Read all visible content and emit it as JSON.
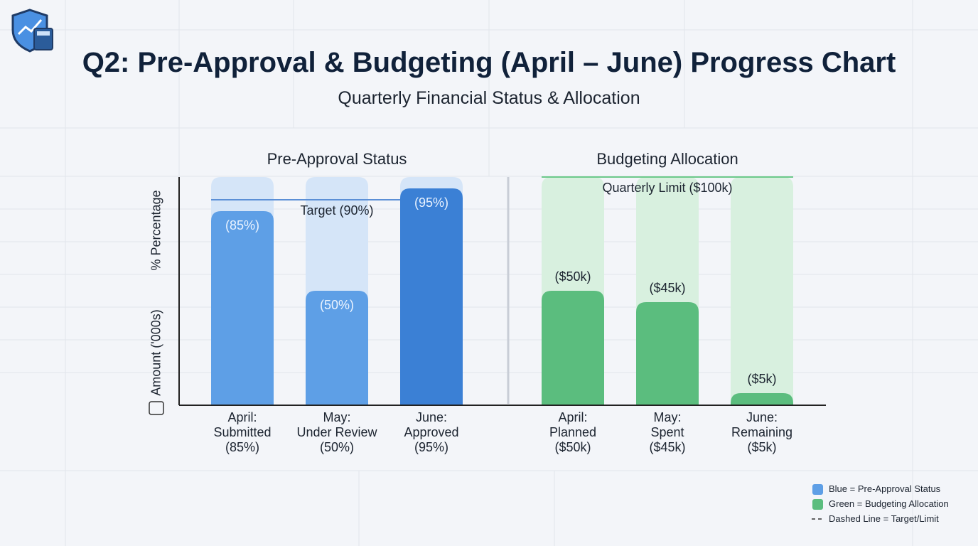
{
  "title": "Q2: Pre-Approval & Budgeting (April – June) Progress Chart",
  "subtitle": "Quarterly Financial Status & Allocation",
  "y_axis_labels": [
    "Amount ('000s)",
    "% Percentage"
  ],
  "chart_data": [
    {
      "type": "bar",
      "title": "Pre-Approval Status",
      "categories": [
        "April:\nSubmitted\n(85%)",
        "May:\nUnder Review\n(50%)",
        "June:\nApproved\n(95%)"
      ],
      "values": [
        85,
        50,
        95
      ],
      "value_labels": [
        "(85%)",
        "(50%)",
        "(95%)"
      ],
      "colors": [
        "#5e9fe6",
        "#5e9fe6",
        "#3b80d5"
      ],
      "track_color": "#d5e5f8",
      "label_position": "inside",
      "ylim": [
        0,
        100
      ],
      "reference_line": {
        "value": 90,
        "label": "Target (90%)",
        "color": "#5b8fd6"
      }
    },
    {
      "type": "bar",
      "title": "Budgeting Allocation",
      "categories": [
        "April:\nPlanned\n($50k)",
        "May:\nSpent\n($45k)",
        "June:\nRemaining\n($5k)"
      ],
      "values": [
        50,
        45,
        5
      ],
      "value_labels": [
        "($50k)",
        "($45k)",
        "($5k)"
      ],
      "colors": [
        "#5bbd7e",
        "#5bbd7e",
        "#5bbd7e"
      ],
      "track_color": "#d8f0df",
      "label_position": "above",
      "ylim": [
        0,
        100
      ],
      "reference_line": {
        "value": 100,
        "label": "Quarterly Limit ($100k)",
        "color": "#6cc98a"
      }
    }
  ],
  "legend": [
    {
      "label": "Blue = Pre-Approval Status",
      "color": "#5e9fe6",
      "marker": "square"
    },
    {
      "label": "Green = Budgeting Allocation",
      "color": "#5bbd7e",
      "marker": "square"
    },
    {
      "label": "Dashed Line = Target/Limit",
      "color": "#333333",
      "marker": "dash"
    }
  ]
}
